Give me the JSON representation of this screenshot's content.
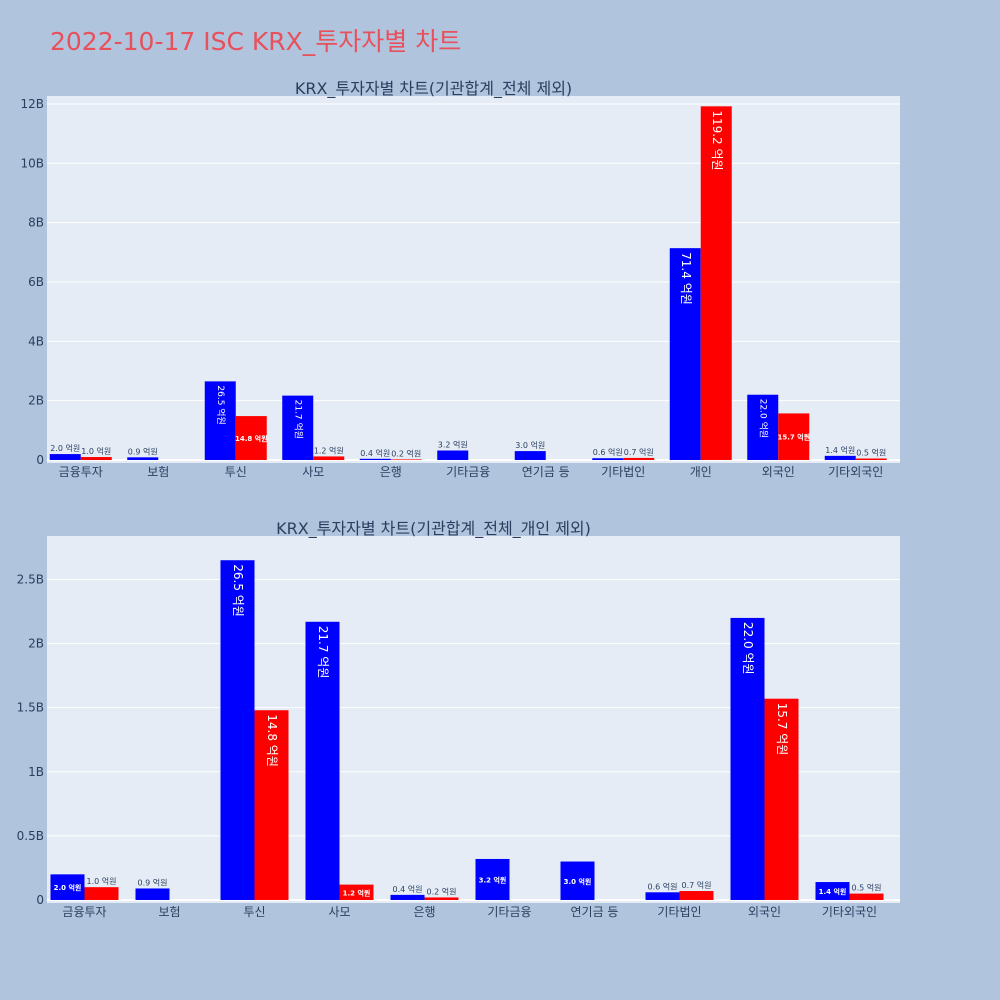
{
  "page_title": "2022-10-17 ISC KRX_투자자별 차트",
  "colors": {
    "page_bg": "#b0c4de",
    "plot_bg": "#e5ecf6",
    "title": "#e8505b",
    "text": "#2a3f5f",
    "series_1": "#0000ff",
    "series_2": "#ff0000"
  },
  "chart_data": [
    {
      "type": "bar",
      "title": "KRX_투자자별 차트(기관합계_전체 제외)",
      "categories": [
        "금융투자",
        "보험",
        "투신",
        "사모",
        "은행",
        "기타금융",
        "연기금 등",
        "기타법인",
        "개인",
        "외국인",
        "기타외국인"
      ],
      "ylim": [
        0,
        12.1
      ],
      "y_unit_suffix": "B",
      "yticks": [
        {
          "value": 0,
          "label": "0"
        },
        {
          "value": 2,
          "label": "2B"
        },
        {
          "value": 4,
          "label": "4B"
        },
        {
          "value": 6,
          "label": "6B"
        },
        {
          "value": 8,
          "label": "8B"
        },
        {
          "value": 10,
          "label": "10B"
        },
        {
          "value": 12,
          "label": "12B"
        }
      ],
      "grid": true,
      "series": [
        {
          "color": "#0000ff",
          "values": [
            0.2,
            0.09,
            2.65,
            2.17,
            0.04,
            0.32,
            0.3,
            0.06,
            7.14,
            2.2,
            0.14
          ],
          "labels": [
            "2.0 억원",
            "0.9 억원",
            "26.5 억원",
            "21.7 억원",
            "0.4 억원",
            "3.2 억원",
            "3.0 억원",
            "0.6 억원",
            "71.4 억원",
            "22.0 억원",
            "1.4 억원"
          ]
        },
        {
          "color": "#ff0000",
          "values": [
            0.1,
            null,
            1.48,
            0.12,
            0.02,
            null,
            null,
            0.07,
            11.92,
            1.57,
            0.05
          ],
          "labels": [
            "1.0 억원",
            "",
            "14.8 억원",
            "1.2 억원",
            "0.2 억원",
            "",
            "",
            "0.7 억원",
            "119.2 억원",
            "15.7 억원",
            "0.5 억원"
          ]
        }
      ]
    },
    {
      "type": "bar",
      "title": "KRX_투자자별 차트(기관합계_전체_개인 제외)",
      "categories": [
        "금융투자",
        "보험",
        "투신",
        "사모",
        "은행",
        "기타금융",
        "연기금 등",
        "기타법인",
        "외국인",
        "기타외국인"
      ],
      "ylim": [
        0,
        2.8
      ],
      "y_unit_suffix": "B",
      "yticks": [
        {
          "value": 0,
          "label": "0"
        },
        {
          "value": 0.5,
          "label": "0.5B"
        },
        {
          "value": 1,
          "label": "1B"
        },
        {
          "value": 1.5,
          "label": "1.5B"
        },
        {
          "value": 2,
          "label": "2B"
        },
        {
          "value": 2.5,
          "label": "2.5B"
        }
      ],
      "grid": true,
      "series": [
        {
          "color": "#0000ff",
          "values": [
            0.2,
            0.09,
            2.65,
            2.17,
            0.04,
            0.32,
            0.3,
            0.06,
            2.2,
            0.14
          ],
          "labels": [
            "2.0 억원",
            "0.9 억원",
            "26.5 억원",
            "21.7 억원",
            "0.4 억원",
            "3.2 억원",
            "3.0 억원",
            "0.6 억원",
            "22.0 억원",
            "1.4 억원"
          ]
        },
        {
          "color": "#ff0000",
          "values": [
            0.1,
            null,
            1.48,
            0.12,
            0.02,
            null,
            null,
            0.07,
            1.57,
            0.05
          ],
          "labels": [
            "1.0 억원",
            "",
            "14.8 억원",
            "1.2 억원",
            "0.2 억원",
            "",
            "",
            "0.7 억원",
            "15.7 억원",
            "0.5 억원"
          ]
        }
      ]
    }
  ]
}
